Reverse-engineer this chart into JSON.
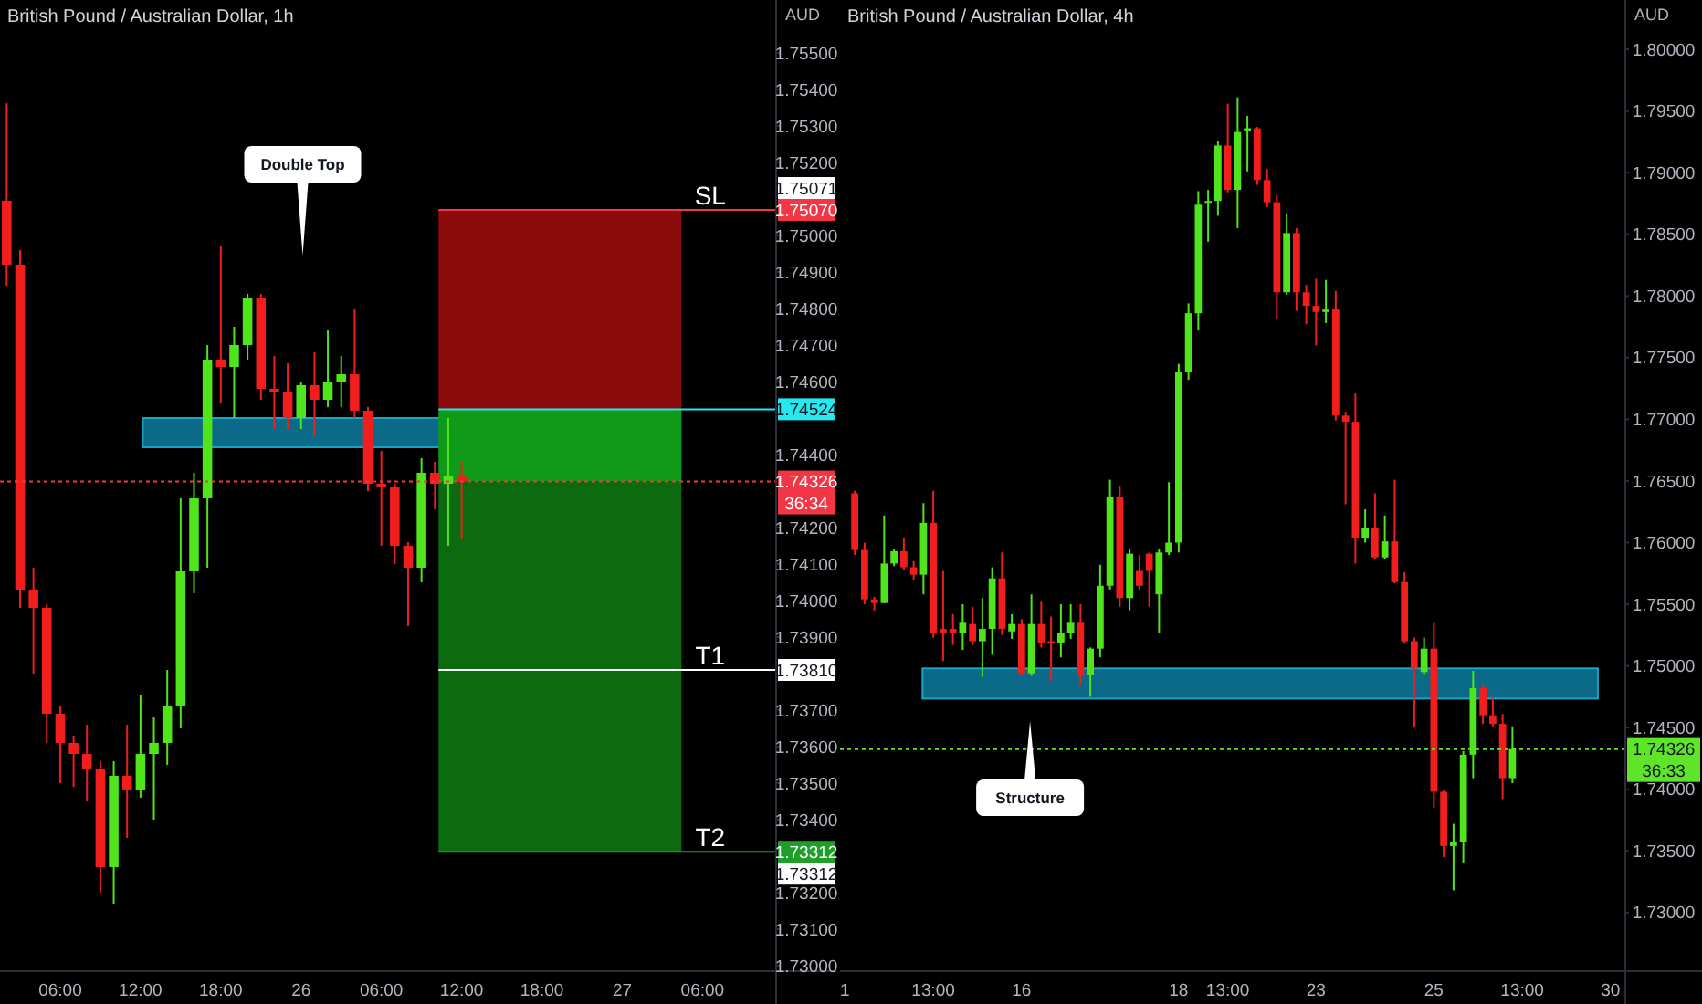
{
  "chart_data": [
    {
      "type": "candlestick",
      "title": "British Pound / Australian Dollar, 1h",
      "ylabel": "AUD",
      "categories": [
        null,
        null,
        null,
        null,
        "06:00",
        null,
        null,
        null,
        null,
        null,
        "12:00",
        null,
        null,
        null,
        null,
        null,
        "18:00",
        null,
        null,
        null,
        null,
        null,
        "26",
        null,
        null,
        null,
        null,
        null,
        "06:00",
        null,
        null,
        null,
        null,
        null,
        "12:00",
        null,
        null,
        null,
        null,
        null,
        "18:00",
        null,
        null,
        null,
        null,
        null,
        "27",
        null,
        null,
        null,
        null,
        null,
        "06:00",
        null,
        null,
        null,
        null,
        null
      ],
      "ohlc": [
        [
          1.75095,
          1.75362,
          1.74862,
          1.7492
        ],
        [
          1.7492,
          1.7496,
          1.7398,
          1.7403
        ],
        [
          1.7403,
          1.7409,
          1.738,
          1.7398
        ],
        [
          1.7398,
          1.7399,
          1.7361,
          1.7369
        ],
        [
          1.7369,
          1.7371,
          1.735,
          1.7361
        ],
        [
          1.7361,
          1.7363,
          1.7349,
          1.7358
        ],
        [
          1.7358,
          1.7366,
          1.7345,
          1.7354
        ],
        [
          1.7354,
          1.7356,
          1.732,
          1.7327
        ],
        [
          1.7327,
          1.7356,
          1.7317,
          1.7352
        ],
        [
          1.7352,
          1.7366,
          1.7335,
          1.7348
        ],
        [
          1.7348,
          1.7374,
          1.7346,
          1.7358
        ],
        [
          1.7358,
          1.7368,
          1.734,
          1.7361
        ],
        [
          1.7361,
          1.7381,
          1.7355,
          1.7371
        ],
        [
          1.7371,
          1.7428,
          1.7365,
          1.7408
        ],
        [
          1.7408,
          1.7435,
          1.7402,
          1.7428
        ],
        [
          1.7428,
          1.747,
          1.7409,
          1.7466
        ],
        [
          1.7466,
          1.7497,
          1.7454,
          1.7464
        ],
        [
          1.7464,
          1.7475,
          1.745,
          1.747
        ],
        [
          1.747,
          1.7484,
          1.7466,
          1.7483
        ],
        [
          1.7483,
          1.7484,
          1.7455,
          1.7458
        ],
        [
          1.7458,
          1.7467,
          1.7447,
          1.7457
        ],
        [
          1.7457,
          1.7465,
          1.7447,
          1.745
        ],
        [
          1.745,
          1.746,
          1.7447,
          1.7459
        ],
        [
          1.7459,
          1.7468,
          1.7445,
          1.7455
        ],
        [
          1.7455,
          1.7474,
          1.7453,
          1.746
        ],
        [
          1.746,
          1.7467,
          1.7453,
          1.7462
        ],
        [
          1.7462,
          1.748,
          1.745,
          1.7452
        ],
        [
          1.7452,
          1.7453,
          1.743,
          1.7432
        ],
        [
          1.7432,
          1.7441,
          1.7415,
          1.7431
        ],
        [
          1.7431,
          1.7432,
          1.741,
          1.7415
        ],
        [
          1.7415,
          1.7416,
          1.7393,
          1.7409
        ],
        [
          1.7409,
          1.7439,
          1.7405,
          1.7435
        ],
        [
          1.7435,
          1.7438,
          1.7425,
          1.7432
        ],
        [
          1.7432,
          1.745,
          1.7415,
          1.7434
        ],
        [
          1.7434,
          1.7438,
          1.7417,
          1.74326
        ],
        null,
        null,
        null,
        null,
        null,
        null,
        null,
        null,
        null,
        null,
        null,
        null,
        null,
        null,
        null,
        null,
        null,
        null,
        null,
        null,
        null,
        null,
        null
      ],
      "ylim": [
        1.72985,
        1.75645
      ],
      "yticks": [
        {
          "value": 1.73,
          "label": "1.73000"
        },
        {
          "value": 1.731,
          "label": "1.73100"
        },
        {
          "value": 1.732,
          "label": "1.73200"
        },
        {
          "value": 1.734,
          "label": "1.73400"
        },
        {
          "value": 1.735,
          "label": "1.73500"
        },
        {
          "value": 1.736,
          "label": "1.73600"
        },
        {
          "value": 1.737,
          "label": "1.73700"
        },
        {
          "value": 1.739,
          "label": "1.73900"
        },
        {
          "value": 1.74,
          "label": "1.74000"
        },
        {
          "value": 1.741,
          "label": "1.74100"
        },
        {
          "value": 1.742,
          "label": "1.74200"
        },
        {
          "value": 1.744,
          "label": "1.74400"
        },
        {
          "value": 1.746,
          "label": "1.74600"
        },
        {
          "value": 1.747,
          "label": "1.74700"
        },
        {
          "value": 1.748,
          "label": "1.74800"
        },
        {
          "value": 1.749,
          "label": "1.74900"
        },
        {
          "value": 1.75,
          "label": "1.75000"
        },
        {
          "value": 1.752,
          "label": "1.75200"
        },
        {
          "value": 1.753,
          "label": "1.75300"
        },
        {
          "value": 1.754,
          "label": "1.75400"
        },
        {
          "value": 1.755,
          "label": "1.75500"
        }
      ],
      "bands": [
        {
          "axis": "y",
          "from": 1.7442,
          "to": 1.745,
          "color": "#0b6a87"
        },
        {
          "axis": "y",
          "from": 1.74524,
          "to": 1.7507,
          "color": "#8c0b0b"
        },
        {
          "axis": "y",
          "from": 1.74326,
          "to": 1.74524,
          "color": "#0f9a17"
        },
        {
          "axis": "y",
          "from": 1.73312,
          "to": 1.74326,
          "color": "#0b6b0e"
        }
      ],
      "ref_lines": [
        {
          "axis": "y",
          "value": 1.7507,
          "label": "SL",
          "color": "#f23645",
          "line_style": "solid"
        },
        {
          "axis": "y",
          "value": 1.74524,
          "color": "#26e8ee",
          "line_style": "solid"
        },
        {
          "axis": "y",
          "value": 1.74326,
          "label": "1.74326",
          "color": "#f23645",
          "line_style": "dotted"
        },
        {
          "axis": "y",
          "value": 1.7381,
          "label": "T1",
          "color": "#ffffff",
          "line_style": "solid"
        },
        {
          "axis": "y",
          "value": 1.73312,
          "label": "T2",
          "color": "#1f9e2a",
          "line_style": "solid"
        }
      ],
      "annotations": [
        "Double Top",
        {
          "text": "1.75070",
          "y": 1.7507
        },
        "1.75071",
        {
          "text": "1.74524",
          "y": 1.74524
        },
        "36:34",
        {
          "text": "1.73810",
          "y": 1.7381
        },
        {
          "text": "1.73312",
          "y": 1.73312
        },
        "1.73312"
      ]
    },
    {
      "type": "candlestick",
      "title": "British Pound / Australian Dollar, 4h",
      "ylabel": "AUD",
      "categories": [
        "1",
        null,
        null,
        null,
        null,
        null,
        null,
        null,
        null,
        "13:00",
        null,
        null,
        null,
        null,
        null,
        null,
        null,
        null,
        "16",
        null,
        null,
        null,
        null,
        null,
        null,
        null,
        null,
        null,
        null,
        null,
        null,
        null,
        null,
        null,
        "18",
        null,
        null,
        null,
        null,
        "13:00",
        null,
        null,
        null,
        null,
        null,
        null,
        null,
        null,
        "23",
        null,
        null,
        null,
        null,
        null,
        null,
        null,
        null,
        null,
        null,
        null,
        "25",
        null,
        null,
        null,
        null,
        null,
        null,
        null,
        null,
        "13:00",
        null,
        null,
        null,
        null,
        null,
        null,
        null,
        null,
        "30",
        null
      ],
      "ohlc": [
        null,
        [
          1.764,
          1.7642,
          1.759,
          1.7594
        ],
        [
          1.7594,
          1.76,
          1.755,
          1.7554
        ],
        [
          1.7554,
          1.7556,
          1.7545,
          1.7551
        ],
        [
          1.7551,
          1.7622,
          1.7551,
          1.7583
        ],
        [
          1.7583,
          1.7595,
          1.7581,
          1.7593
        ],
        [
          1.7593,
          1.7604,
          1.7578,
          1.758
        ],
        [
          1.758,
          1.7585,
          1.757,
          1.7574
        ],
        [
          1.7574,
          1.7632,
          1.7558,
          1.7616
        ],
        [
          1.7616,
          1.7642,
          1.7523,
          1.7527
        ],
        [
          1.753,
          1.7577,
          1.7504,
          1.7527
        ],
        [
          1.753,
          1.7542,
          1.7517,
          1.7527
        ],
        [
          1.7527,
          1.755,
          1.7513,
          1.7535
        ],
        [
          1.7534,
          1.7548,
          1.7517,
          1.752
        ],
        [
          1.752,
          1.7555,
          1.7491,
          1.753
        ],
        [
          1.753,
          1.758,
          1.7509,
          1.7571
        ],
        [
          1.7571,
          1.7592,
          1.7525,
          1.753
        ],
        [
          1.7528,
          1.7542,
          1.7522,
          1.7534
        ],
        [
          1.7534,
          1.7538,
          1.7492,
          1.7494
        ],
        [
          1.7494,
          1.7558,
          1.7492,
          1.7534
        ],
        [
          1.7534,
          1.7552,
          1.7515,
          1.7519
        ],
        [
          1.752,
          1.754,
          1.7488,
          1.7519
        ],
        [
          1.7519,
          1.755,
          1.7507,
          1.7527
        ],
        [
          1.7527,
          1.755,
          1.7522,
          1.7535
        ],
        [
          1.7535,
          1.755,
          1.7484,
          1.7493
        ],
        [
          1.7493,
          1.7515,
          1.7475,
          1.7514
        ],
        [
          1.7514,
          1.7582,
          1.7507,
          1.7565
        ],
        [
          1.7565,
          1.7651,
          1.7562,
          1.7637
        ],
        [
          1.7637,
          1.7646,
          1.7548,
          1.7555
        ],
        [
          1.7555,
          1.7595,
          1.7545,
          1.7591
        ],
        [
          1.7577,
          1.759,
          1.7562,
          1.7565
        ],
        [
          1.7591,
          1.7592,
          1.7548,
          1.7577
        ],
        [
          1.7558,
          1.7595,
          1.7527,
          1.7592
        ],
        [
          1.7592,
          1.7649,
          1.759,
          1.76
        ],
        [
          1.76,
          1.7745,
          1.7592,
          1.7738
        ],
        [
          1.7738,
          1.7794,
          1.7732,
          1.7786
        ],
        [
          1.7786,
          1.7885,
          1.7772,
          1.7874
        ],
        [
          1.7876,
          1.7886,
          1.7844,
          1.7877
        ],
        [
          1.7877,
          1.7926,
          1.7865,
          1.7922
        ],
        [
          1.7922,
          1.7956,
          1.7884,
          1.7886
        ],
        [
          1.7886,
          1.7961,
          1.7855,
          1.7933
        ],
        [
          1.7934,
          1.7946,
          1.7901,
          1.7936
        ],
        [
          1.7936,
          1.7937,
          1.789,
          1.7894
        ],
        [
          1.7894,
          1.7903,
          1.7872,
          1.7876
        ],
        [
          1.7876,
          1.7882,
          1.7781,
          1.7803
        ],
        [
          1.7803,
          1.7867,
          1.7801,
          1.7851
        ],
        [
          1.7851,
          1.7855,
          1.7788,
          1.7803
        ],
        [
          1.7803,
          1.7809,
          1.7777,
          1.7792
        ],
        [
          1.7792,
          1.7814,
          1.776,
          1.7787
        ],
        [
          1.7787,
          1.7813,
          1.7778,
          1.7789
        ],
        [
          1.7789,
          1.7804,
          1.7699,
          1.7703
        ],
        [
          1.7703,
          1.7706,
          1.7631,
          1.7698
        ],
        [
          1.7698,
          1.7721,
          1.7583,
          1.7604
        ],
        [
          1.7604,
          1.7627,
          1.76,
          1.7612
        ],
        [
          1.7612,
          1.764,
          1.7587,
          1.7588
        ],
        [
          1.7588,
          1.7622,
          1.7587,
          1.7601
        ],
        [
          1.7601,
          1.7651,
          1.7567,
          1.7568
        ],
        [
          1.7568,
          1.7576,
          1.7518,
          1.752
        ],
        [
          1.752,
          1.7523,
          1.745,
          1.7498
        ],
        [
          1.7495,
          1.7523,
          1.7493,
          1.7514
        ],
        [
          1.7514,
          1.7535,
          1.7385,
          1.7398
        ],
        [
          1.7398,
          1.7399,
          1.7345,
          1.7354
        ],
        [
          1.7354,
          1.7372,
          1.7318,
          1.7357
        ],
        [
          1.7357,
          1.7431,
          1.734,
          1.7428
        ],
        [
          1.7428,
          1.7496,
          1.7409,
          1.7482
        ],
        [
          1.7482,
          1.7484,
          1.7453,
          1.746
        ],
        [
          1.746,
          1.7474,
          1.7451,
          1.7453
        ],
        [
          1.7453,
          1.7461,
          1.7392,
          1.7409
        ],
        [
          1.7409,
          1.7451,
          1.7405,
          1.74326
        ],
        null,
        null,
        null,
        null,
        null,
        null,
        null,
        null,
        null,
        null,
        null
      ],
      "ylim": [
        1.72525,
        1.804
      ],
      "yticks": [
        {
          "value": 1.73,
          "label": "1.73000"
        },
        {
          "value": 1.735,
          "label": "1.73500"
        },
        {
          "value": 1.74,
          "label": "1.74000"
        },
        {
          "value": 1.745,
          "label": "1.74500"
        },
        {
          "value": 1.75,
          "label": "1.75000"
        },
        {
          "value": 1.755,
          "label": "1.75500"
        },
        {
          "value": 1.76,
          "label": "1.76000"
        },
        {
          "value": 1.765,
          "label": "1.76500"
        },
        {
          "value": 1.77,
          "label": "1.77000"
        },
        {
          "value": 1.775,
          "label": "1.77500"
        },
        {
          "value": 1.78,
          "label": "1.78000"
        },
        {
          "value": 1.785,
          "label": "1.78500"
        },
        {
          "value": 1.79,
          "label": "1.79000"
        },
        {
          "value": 1.795,
          "label": "1.79500"
        },
        {
          "value": 1.8,
          "label": "1.80000"
        }
      ],
      "bands": [
        {
          "axis": "y",
          "from": 1.74735,
          "to": 1.7498,
          "color": "#0b6a87"
        }
      ],
      "ref_lines": [
        {
          "axis": "y",
          "value": 1.74326,
          "label": "1.74326",
          "color": "#5ee52a",
          "line_style": "dotted"
        }
      ],
      "annotations": [
        "Structure",
        "36:33"
      ]
    }
  ]
}
